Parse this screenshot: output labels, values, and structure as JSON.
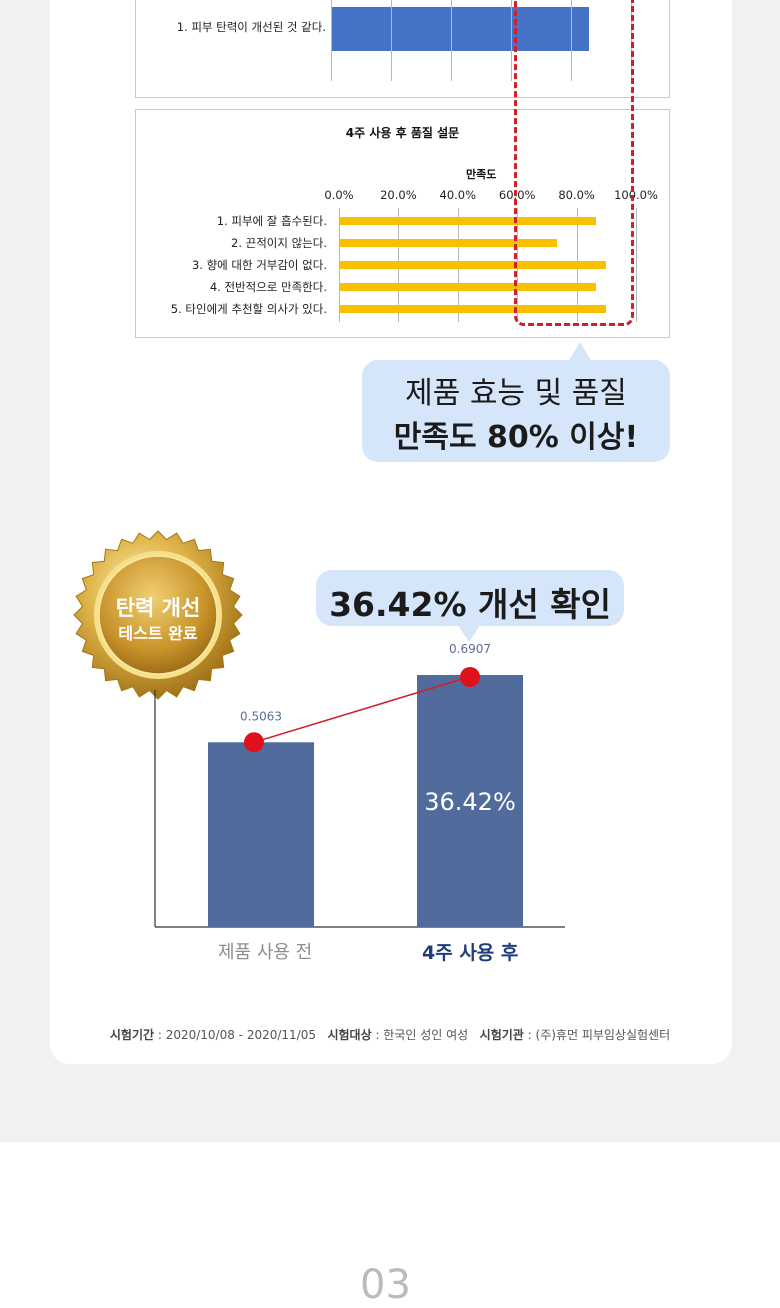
{
  "top_chart": {
    "category": "1. 피부 탄력이 개선된 것 같다.",
    "value": 0.86
  },
  "survey_chart": {
    "title": "4주 사용 후 품질 설문",
    "axis_label": "만족도",
    "ticks": [
      "0.0%",
      "20.0%",
      "40.0%",
      "60.0%",
      "80.0%",
      "100.0%"
    ]
  },
  "callout1": {
    "line1": "제품 효능 및 품질",
    "line2": "만족도 80% 이상!"
  },
  "badge": {
    "line1": "탄력 개선",
    "line2": "테스트 완료"
  },
  "callout2": {
    "text": "36.42% 개선 확인"
  },
  "bar_chart": {
    "bar_label": "36.42%",
    "x_labels": [
      "제품 사용 전",
      "4주 사용 후"
    ]
  },
  "footer": {
    "k1": "시험기간",
    "v1": " : 2020/10/08 - 2020/11/05",
    "k2": "시험대상",
    "v2": " : 한국인 성인 여성",
    "k3": "시험기관",
    "v3": " : (주)휴먼 피부임상실험센터"
  },
  "page_number": "03",
  "colors": {
    "blue_bar": "#4472c4",
    "yellow_bar": "#f7c100",
    "navy_bar": "#516c9c",
    "red": "#cf1f2a",
    "bubble": "#d6e6fa"
  },
  "chart_data": [
    {
      "type": "bar",
      "orientation": "horizontal",
      "categories": [
        "1. 피부 탄력이 개선된 것 같다."
      ],
      "values": [
        86.0
      ],
      "xlim": [
        0,
        100
      ]
    },
    {
      "type": "bar",
      "orientation": "horizontal",
      "title": "4주 사용 후 품질 설문",
      "xlabel": "만족도",
      "categories": [
        "1. 피부에 잘 흡수된다.",
        "2. 끈적이지 않는다.",
        "3. 향에 대한 거부감이 없다.",
        "4. 전반적으로 만족한다.",
        "5. 타인에게 추천할 의사가 있다."
      ],
      "values": [
        86.7,
        73.3,
        90.0,
        86.7,
        90.0
      ],
      "xlim": [
        0,
        100
      ],
      "xticks": [
        "0.0%",
        "20.0%",
        "40.0%",
        "60.0%",
        "80.0%",
        "100.0%"
      ],
      "grid": true
    },
    {
      "type": "bar",
      "categories": [
        "제품 사용 전",
        "4주 사용 후"
      ],
      "values": [
        0.5063,
        0.6907
      ],
      "data_labels": [
        "0.5063",
        "0.6907"
      ],
      "annotation": "36.42%",
      "ylim": [
        0,
        0.75
      ]
    }
  ]
}
